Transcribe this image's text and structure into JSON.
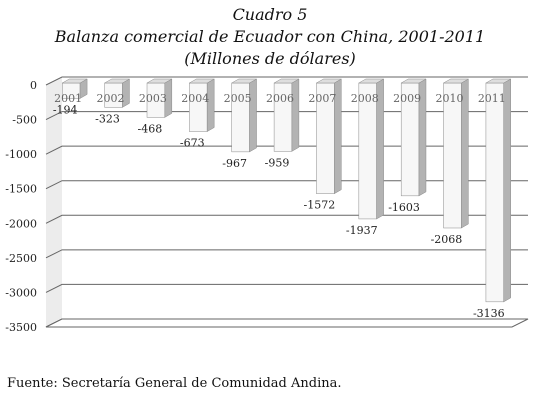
{
  "chart_data": {
    "type": "bar",
    "title": "Cuadro 5",
    "subtitle": "Balanza comercial de Ecuador con China, 2001-2011",
    "units": "(Millones de dólares)",
    "categories": [
      "2001",
      "2002",
      "2003",
      "2004",
      "2005",
      "2006",
      "2007",
      "2008",
      "2009",
      "2010",
      "2011"
    ],
    "values": [
      -194,
      -323,
      -468,
      -673,
      -967,
      -959,
      -1572,
      -1937,
      -1603,
      -2068,
      -3136
    ],
    "ylim": [
      -3500,
      0
    ],
    "yticks": [
      0,
      -500,
      -1000,
      -1500,
      -2000,
      -2500,
      -3000,
      -3500
    ],
    "grid": true,
    "legend": "none",
    "style": "3d-column",
    "colors": {
      "bar_front": "#f7f7f7",
      "bar_side": "#b3b3b3",
      "bar_top": "#dedede",
      "bar_edge": "#8a8a8a",
      "grid": "#666666",
      "wall": "#ececec",
      "floor": "#cfcfcf",
      "text": "#222222"
    }
  },
  "source": "Fuente: Secretaría General de Comunidad Andina."
}
